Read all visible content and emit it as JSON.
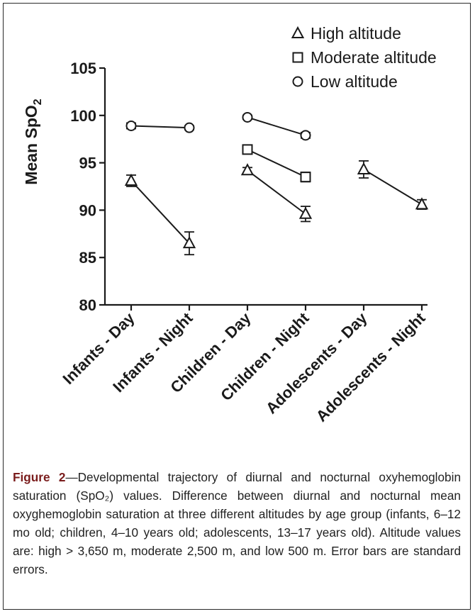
{
  "chart_data": {
    "type": "scatter",
    "ylabel": "Mean SpO",
    "ylabel_subscript": "2",
    "ylim": [
      80,
      105
    ],
    "yticks": [
      80,
      85,
      90,
      95,
      100,
      105
    ],
    "categories": [
      "Infants - Day",
      "Infants - Night",
      "Children - Day",
      "Children - Night",
      "Adolescents - Day",
      "Adolescents - Night"
    ],
    "series": [
      {
        "name": "High altitude",
        "marker": "triangle",
        "points": [
          {
            "category": "Infants - Day",
            "y": 93.1,
            "err": 0.6
          },
          {
            "category": "Infants - Night",
            "y": 86.5,
            "err": 1.2
          },
          {
            "category": "Children - Day",
            "y": 94.2,
            "err": 0.3
          },
          {
            "category": "Children - Night",
            "y": 89.6,
            "err": 0.8
          },
          {
            "category": "Adolescents - Day",
            "y": 94.3,
            "err": 0.9
          },
          {
            "category": "Adolescents - Night",
            "y": 90.6,
            "err": 0.5
          }
        ],
        "segments": [
          [
            0,
            1
          ],
          [
            2,
            3
          ],
          [
            4,
            5
          ]
        ]
      },
      {
        "name": "Moderate altitude",
        "marker": "square",
        "points": [
          {
            "category": "Children - Day",
            "y": 96.4,
            "err": 0.2
          },
          {
            "category": "Children - Night",
            "y": 93.5,
            "err": 0.5
          }
        ],
        "segments": [
          [
            0,
            1
          ]
        ]
      },
      {
        "name": "Low altitude",
        "marker": "circle",
        "points": [
          {
            "category": "Infants - Day",
            "y": 98.9,
            "err": 0.3
          },
          {
            "category": "Infants - Night",
            "y": 98.7,
            "err": 0.2
          },
          {
            "category": "Children - Day",
            "y": 99.8,
            "err": 0.2
          },
          {
            "category": "Children - Night",
            "y": 97.9,
            "err": 0.3
          }
        ],
        "segments": [
          [
            0,
            1
          ],
          [
            2,
            3
          ]
        ]
      }
    ],
    "legend_position": "top-right",
    "colors": {
      "ink": "#1a1a1a"
    }
  },
  "caption": {
    "label": "Figure 2",
    "text": "—Developmental trajectory of diurnal and nocturnal oxyhemoglobin saturation (SpO₂) values. Difference between diurnal and nocturnal mean oxyghemoglobin saturation at three different altitudes by age group (infants, 6–12 mo old; children, 4–10 years old; adolescents, 13–17 years old). Altitude values are: high > 3,650 m, moderate 2,500 m, and low 500 m. Error bars are standard errors."
  }
}
